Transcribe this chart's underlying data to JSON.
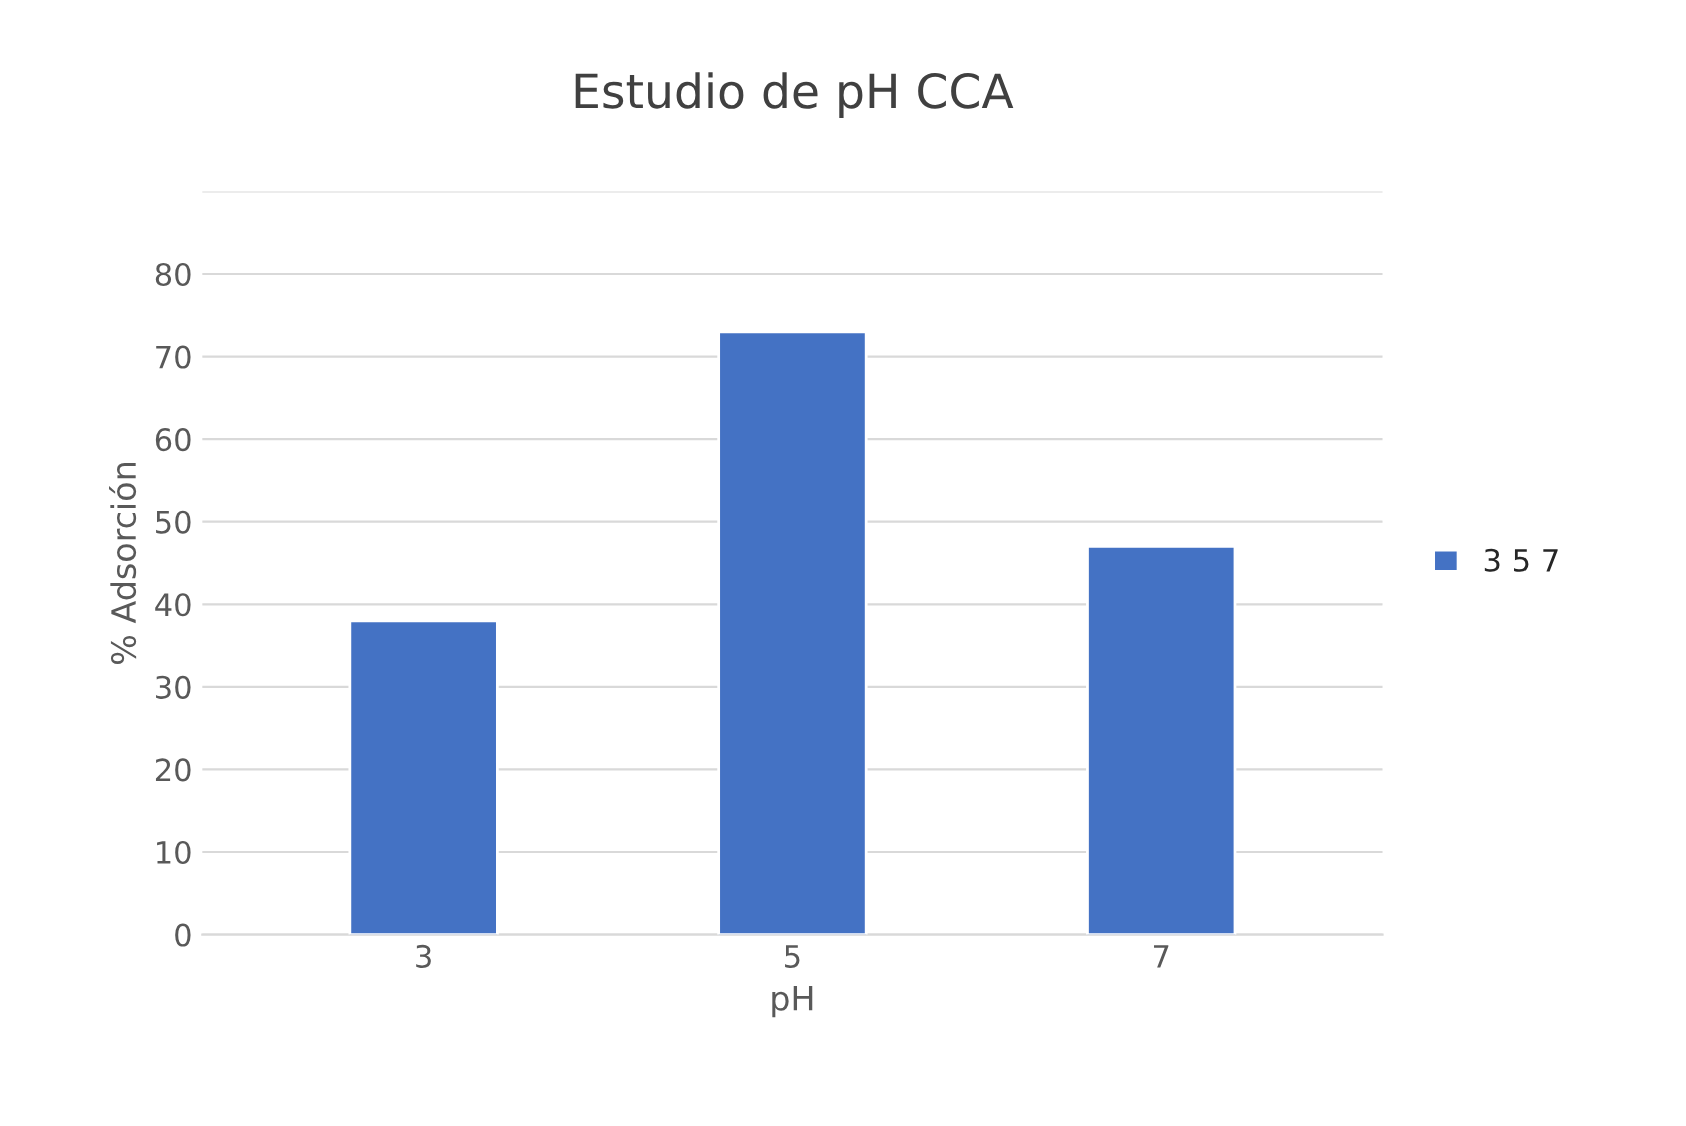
{
  "chart_data": {
    "type": "bar",
    "title": "Estudio de pH CCA",
    "xlabel": "pH",
    "ylabel": "% Adsorción",
    "categories": [
      "3",
      "5",
      "7"
    ],
    "series": [
      {
        "name": "3 5 7",
        "color": "#4472c4",
        "values": [
          38,
          73,
          47
        ]
      }
    ],
    "ylim": [
      0,
      90
    ],
    "yticks": [
      0,
      10,
      20,
      30,
      40,
      50,
      60,
      70,
      80,
      {
        "value": 90,
        "label": null
      }
    ],
    "grid": "y",
    "legend": "right"
  }
}
